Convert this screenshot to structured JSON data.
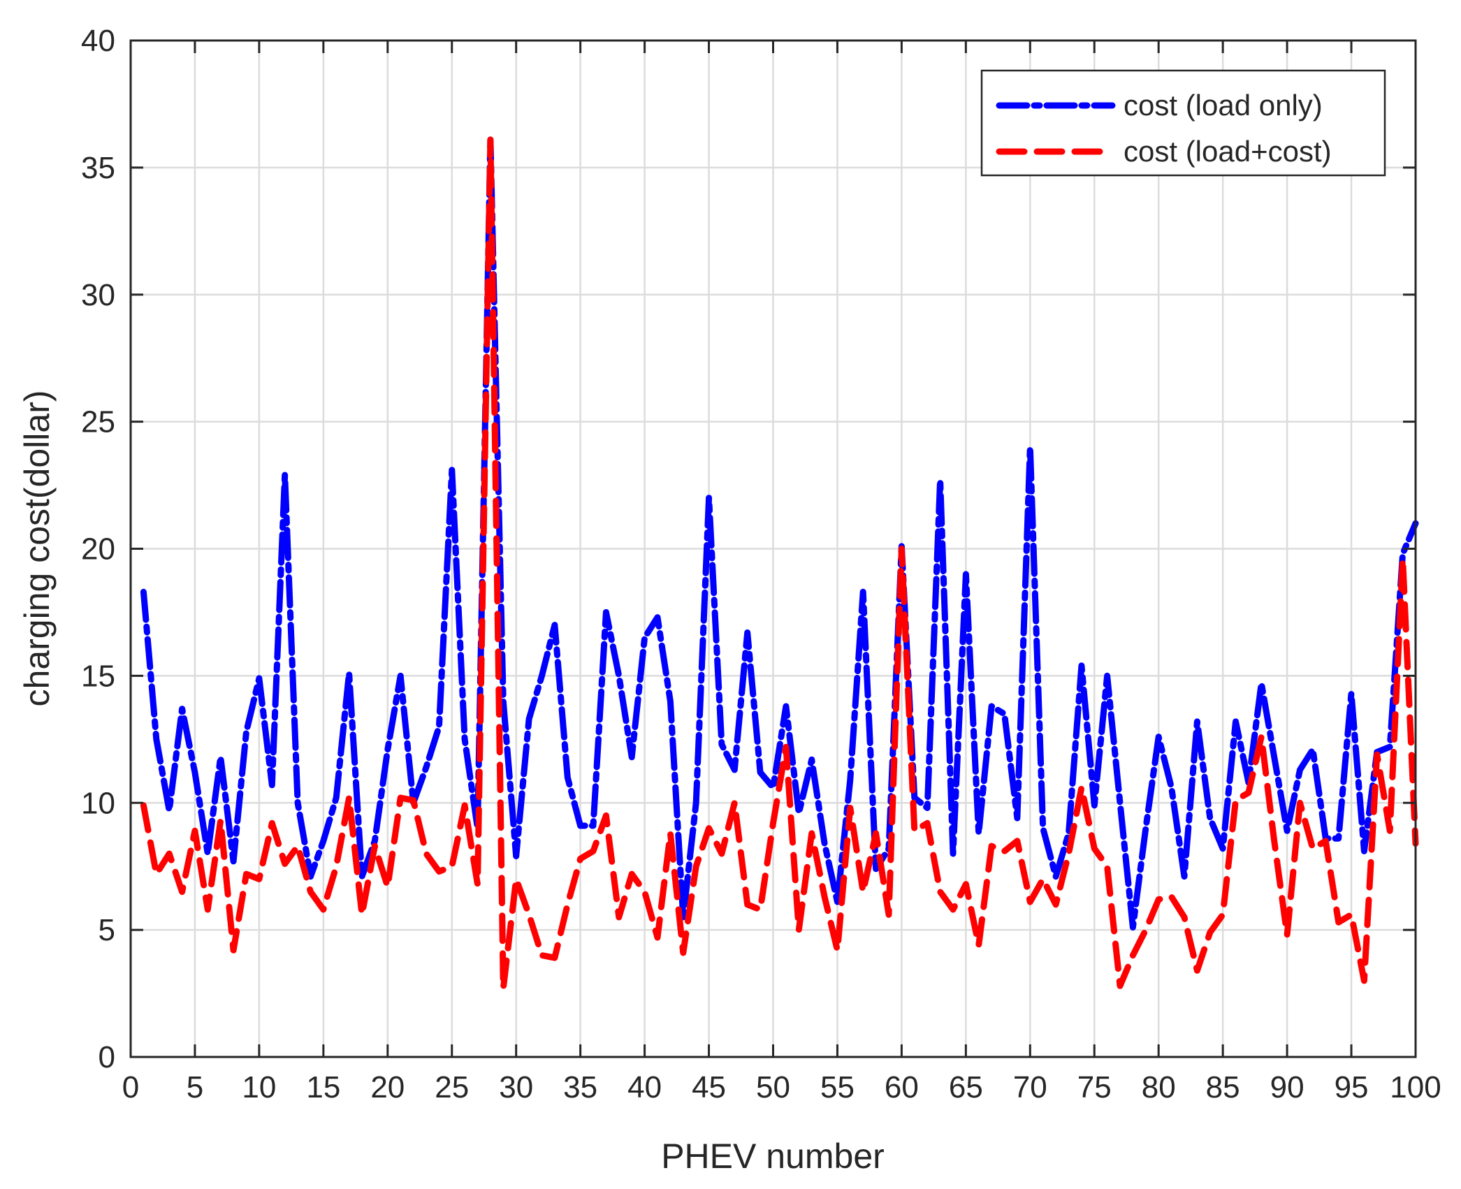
{
  "chart_data": {
    "type": "line",
    "xlabel": "PHEV number",
    "ylabel": "charging cost(dollar)",
    "xlim": [
      0,
      100
    ],
    "ylim": [
      0,
      40
    ],
    "xticks": [
      0,
      5,
      10,
      15,
      20,
      25,
      30,
      35,
      40,
      45,
      50,
      55,
      60,
      65,
      70,
      75,
      80,
      85,
      90,
      95,
      100
    ],
    "yticks": [
      0,
      5,
      10,
      15,
      20,
      25,
      30,
      35,
      40
    ],
    "grid": true,
    "legend_position": "top-right",
    "x": [
      1,
      2,
      3,
      4,
      5,
      6,
      7,
      8,
      9,
      10,
      11,
      12,
      13,
      14,
      15,
      16,
      17,
      18,
      19,
      20,
      21,
      22,
      23,
      24,
      25,
      26,
      27,
      28,
      29,
      30,
      31,
      32,
      33,
      34,
      35,
      36,
      37,
      38,
      39,
      40,
      41,
      42,
      43,
      44,
      45,
      46,
      47,
      48,
      49,
      50,
      51,
      52,
      53,
      54,
      55,
      56,
      57,
      58,
      59,
      60,
      61,
      62,
      63,
      64,
      65,
      66,
      67,
      68,
      69,
      70,
      71,
      72,
      73,
      74,
      75,
      76,
      77,
      78,
      79,
      80,
      81,
      82,
      83,
      84,
      85,
      86,
      87,
      88,
      89,
      90,
      91,
      92,
      93,
      94,
      95,
      96,
      97,
      98,
      99,
      100
    ],
    "series": [
      {
        "name": "cost (load only)",
        "color": "#0000ff",
        "values": [
          18.3,
          12.5,
          9.7,
          13.7,
          11.2,
          8.0,
          11.8,
          7.7,
          12.8,
          14.9,
          10.7,
          22.9,
          10.0,
          7.1,
          8.5,
          10.2,
          15.1,
          7.1,
          8.5,
          12.1,
          15.0,
          10.0,
          11.4,
          13.0,
          23.1,
          12.5,
          9.0,
          36.1,
          14.0,
          7.9,
          13.3,
          15.0,
          17.0,
          11.0,
          9.1,
          9.1,
          17.5,
          15.0,
          11.8,
          16.5,
          17.3,
          14.0,
          5.5,
          10.0,
          22.0,
          12.3,
          11.3,
          16.7,
          11.2,
          10.6,
          13.8,
          9.6,
          11.7,
          8.4,
          6.1,
          10.9,
          18.3,
          7.4,
          8.2,
          20.1,
          10.2,
          9.8,
          22.7,
          8.0,
          19.0,
          8.8,
          13.8,
          13.5,
          9.4,
          24.0,
          9.0,
          7.1,
          8.8,
          15.4,
          9.9,
          15.0,
          10.0,
          5.1,
          9.0,
          12.6,
          10.6,
          7.1,
          13.2,
          9.4,
          8.2,
          13.2,
          10.8,
          14.7,
          11.8,
          8.9,
          11.3,
          12.1,
          8.6,
          8.6,
          14.3,
          8.1,
          12.0,
          12.2,
          19.8,
          21.0
        ]
      },
      {
        "name": "cost (load+cost)",
        "color": "#ff0000",
        "values": [
          9.9,
          7.2,
          8.0,
          6.5,
          8.9,
          5.8,
          9.3,
          4.2,
          7.2,
          7.0,
          9.2,
          7.6,
          8.3,
          6.5,
          5.8,
          7.5,
          10.2,
          5.6,
          8.3,
          6.7,
          10.2,
          10.1,
          8.0,
          7.3,
          7.5,
          9.9,
          6.8,
          36.1,
          2.7,
          7.0,
          5.6,
          4.0,
          3.9,
          6.0,
          7.8,
          8.1,
          9.5,
          5.5,
          7.2,
          6.5,
          4.7,
          8.8,
          4.1,
          7.5,
          9.0,
          8.0,
          10.0,
          6.0,
          5.8,
          9.2,
          12.2,
          5.0,
          8.8,
          6.3,
          4.2,
          9.8,
          6.5,
          8.8,
          5.6,
          20.0,
          8.9,
          9.2,
          6.5,
          5.8,
          6.8,
          4.4,
          8.3,
          8.1,
          8.5,
          6.1,
          7.0,
          6.0,
          8.0,
          10.6,
          8.2,
          7.5,
          2.8,
          4.0,
          5.0,
          6.2,
          6.3,
          5.5,
          3.4,
          4.9,
          5.6,
          10.1,
          10.4,
          12.6,
          8.5,
          4.8,
          10.0,
          8.2,
          8.5,
          5.3,
          5.6,
          3.0,
          11.9,
          8.9,
          19.6,
          8.4
        ]
      }
    ]
  }
}
